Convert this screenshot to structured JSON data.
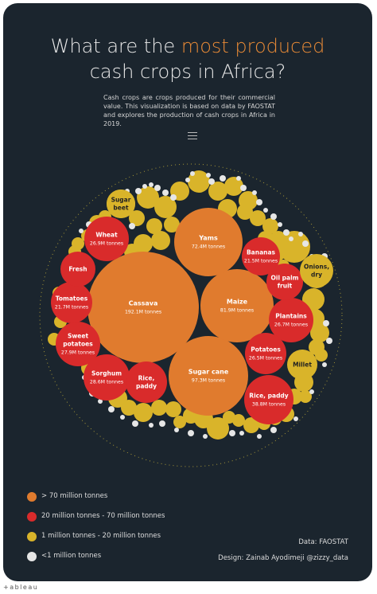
{
  "title": {
    "prefix": "What are the ",
    "accent": "most produced",
    "line2": "cash crops in Africa?"
  },
  "description": "Cash crops are crops produced for their commercial value. This visualization is based on data by FAOSTAT and explores the production of cash crops in Africa in 2019.",
  "colors": {
    "background": "#1b252e",
    "over70": "#e07b2e",
    "range20to70": "#d92b2b",
    "range1to20": "#d9b42a",
    "under1": "#e6e6e6",
    "accent": "#e88a36"
  },
  "legend": [
    {
      "label": "> 70 million tonnes",
      "color": "#e07b2e"
    },
    {
      "label": "20 million tonnes - 70 million tonnes",
      "color": "#d92b2b"
    },
    {
      "label": "1 million tonnes - 20 million tonnes",
      "color": "#d9b42a"
    },
    {
      "label": "<1 million tonnes",
      "color": "#e6e6e6"
    }
  ],
  "credits": {
    "source": "Data: FAOSTAT",
    "design": "Design: Zainab Ayodimeji @zizzy_data"
  },
  "footer": "+ableau",
  "chart_data": {
    "type": "packed-bubble",
    "unit": "M tonnes",
    "bubbles": [
      {
        "name": "Cassava",
        "value": 192.1,
        "label": "192.1M tonnes",
        "category": "over70"
      },
      {
        "name": "Sugar cane",
        "value": 97.3,
        "label": "97.3M tonnes",
        "category": "over70"
      },
      {
        "name": "Maize",
        "value": 81.9,
        "label": "81.9M tonnes",
        "category": "over70"
      },
      {
        "name": "Yams",
        "value": 72.4,
        "label": "72.4M tonnes",
        "category": "over70"
      },
      {
        "name": "Rice, paddy",
        "value": 38.8,
        "label": "38.8M tonnes",
        "category": "range20to70"
      },
      {
        "name": "Sorghum",
        "value": 28.6,
        "label": "28.6M tonnes",
        "category": "range20to70"
      },
      {
        "name": "Sweet potatoes",
        "value": 27.9,
        "label": "27.9M tonnes",
        "category": "range20to70"
      },
      {
        "name": "Wheat",
        "value": 26.9,
        "label": "26.9M tonnes",
        "category": "range20to70"
      },
      {
        "name": "Plantains",
        "value": 26.7,
        "label": "26.7M tonnes",
        "category": "range20to70"
      },
      {
        "name": "Potatoes",
        "value": 26.5,
        "label": "26.5M tonnes",
        "category": "range20to70"
      },
      {
        "name": "Tomatoes",
        "value": 21.7,
        "label": "21.7M tonnes",
        "category": "range20to70"
      },
      {
        "name": "Bananas",
        "value": 21.5,
        "label": "21.5M tonnes",
        "category": "range20to70"
      },
      {
        "name": "Fresh",
        "value": null,
        "label": "",
        "category": "range20to70"
      },
      {
        "name": "Oil palm fruit",
        "value": null,
        "label": "",
        "category": "range20to70"
      },
      {
        "name": "Rice, paddy",
        "value": null,
        "label": "",
        "category": "range20to70"
      },
      {
        "name": "Onions, dry",
        "value": null,
        "label": "",
        "category": "range1to20"
      },
      {
        "name": "Millet",
        "value": null,
        "label": "",
        "category": "range1to20"
      },
      {
        "name": "Sugar beet",
        "value": null,
        "label": "",
        "category": "range1to20"
      }
    ]
  }
}
